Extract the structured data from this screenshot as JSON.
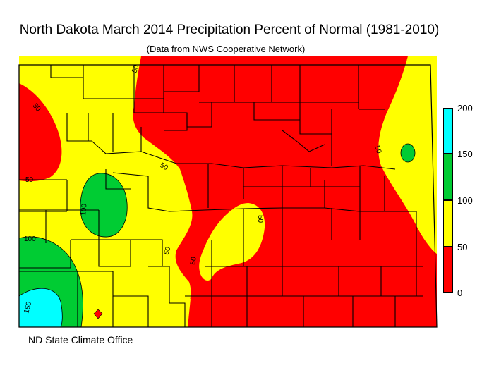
{
  "title": "North Dakota March 2014 Precipitation Percent of Normal (1981-2010)",
  "subtitle": "(Data from NWS Cooperative Network)",
  "credit": "ND State Climate Office",
  "colors": {
    "red": "#ff0000",
    "yellow": "#ffff00",
    "green": "#00cc33",
    "cyan": "#00ffff",
    "county_line": "#000000"
  },
  "legend": {
    "ticks": [
      "200",
      "150",
      "100",
      "50",
      "0"
    ],
    "bins": [
      {
        "range": "150-200",
        "color": "#00ffff"
      },
      {
        "range": "100-150",
        "color": "#00cc33"
      },
      {
        "range": "50-100",
        "color": "#ffff00"
      },
      {
        "range": "0-50",
        "color": "#ff0000"
      }
    ]
  },
  "contour_labels": [
    "50",
    "50",
    "50",
    "50",
    "50",
    "50",
    "50",
    "50",
    "100",
    "100",
    "150"
  ]
}
